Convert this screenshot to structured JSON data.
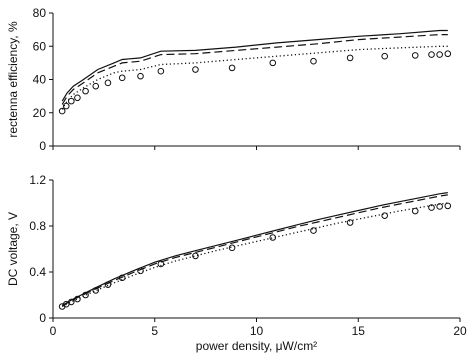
{
  "colors": {
    "axis": "#111111",
    "series": "#111111",
    "background": "#ffffff"
  },
  "chart_data": [
    {
      "type": "line",
      "title": "",
      "xlabel": "",
      "ylabel": "rectenna efficiency, %",
      "xlim": [
        0,
        20
      ],
      "ylim": [
        0,
        80
      ],
      "x_ticks": [
        0,
        5,
        10,
        15,
        20
      ],
      "x_tick_labels": [
        "",
        "",
        "",
        "",
        ""
      ],
      "y_ticks": [
        0,
        20,
        40,
        60,
        80
      ],
      "y_tick_labels": [
        "0",
        "20",
        "40",
        "60",
        "80"
      ],
      "grid": false,
      "legend": "none",
      "series": [
        {
          "style": "solid",
          "x": [
            0.45,
            0.7,
            1.0,
            1.5,
            2.2,
            3.0,
            3.4,
            4.3,
            5.3,
            7.0,
            9.0,
            11.0,
            13.0,
            15.0,
            17.0,
            19.0,
            19.4
          ],
          "y": [
            27,
            32,
            36,
            40,
            46,
            50,
            52,
            53,
            57,
            57.5,
            59.5,
            62,
            64,
            66,
            67.5,
            69.5,
            69.5
          ]
        },
        {
          "style": "dashed",
          "x": [
            0.45,
            0.7,
            1.0,
            1.5,
            2.2,
            3.0,
            3.4,
            4.3,
            5.3,
            7.0,
            9.0,
            11.0,
            13.0,
            15.0,
            17.0,
            19.0,
            19.4
          ],
          "y": [
            25,
            30,
            34,
            38,
            44,
            48,
            50,
            51,
            55,
            55.5,
            57.5,
            59.5,
            61.5,
            64,
            65.5,
            67,
            67
          ]
        },
        {
          "style": "dotted",
          "x": [
            0.45,
            0.7,
            1.0,
            1.5,
            2.2,
            3.0,
            3.4,
            4.3,
            5.3,
            7.0,
            9.0,
            11.0,
            13.0,
            15.0,
            17.0,
            19.0,
            19.4
          ],
          "y": [
            22,
            27,
            31,
            35,
            40,
            44,
            45,
            46,
            49,
            50,
            52,
            54,
            56,
            58,
            59,
            60,
            60
          ]
        },
        {
          "style": "circle-markers",
          "x": [
            0.45,
            0.65,
            0.9,
            1.2,
            1.6,
            2.1,
            2.7,
            3.4,
            4.3,
            5.3,
            7.0,
            8.8,
            10.8,
            12.8,
            14.6,
            16.3,
            17.8,
            18.6,
            19.0,
            19.4
          ],
          "y": [
            21,
            24,
            27,
            29,
            33,
            36,
            38,
            41,
            42,
            45,
            46,
            47,
            50,
            51,
            53,
            54,
            54.5,
            55,
            55,
            55.5
          ]
        }
      ]
    },
    {
      "type": "line",
      "title": "",
      "xlabel": "power density, μW/cm²",
      "ylabel": "DC voltage, V",
      "xlim": [
        0,
        20
      ],
      "ylim": [
        0,
        1.2
      ],
      "x_ticks": [
        0,
        5,
        10,
        15,
        20
      ],
      "x_tick_labels": [
        "0",
        "5",
        "10",
        "15",
        "20"
      ],
      "y_ticks": [
        0,
        0.4,
        0.8,
        1.2
      ],
      "y_tick_labels": [
        "0",
        "0.4",
        "0.8",
        "1.2"
      ],
      "grid": false,
      "legend": "none",
      "series": [
        {
          "style": "solid",
          "x": [
            0.45,
            1.0,
            2.0,
            3.0,
            4.0,
            5.0,
            6.0,
            7.0,
            8.0,
            9.0,
            10.0,
            11.0,
            12.0,
            13.0,
            14.0,
            15.0,
            16.0,
            17.0,
            18.0,
            19.0,
            19.4
          ],
          "y": [
            0.11,
            0.165,
            0.255,
            0.34,
            0.415,
            0.485,
            0.54,
            0.585,
            0.63,
            0.675,
            0.72,
            0.765,
            0.81,
            0.855,
            0.895,
            0.935,
            0.975,
            1.01,
            1.045,
            1.08,
            1.09
          ]
        },
        {
          "style": "dashed",
          "x": [
            0.45,
            1.0,
            2.0,
            3.0,
            4.0,
            5.0,
            6.0,
            7.0,
            8.0,
            9.0,
            10.0,
            11.0,
            12.0,
            13.0,
            14.0,
            15.0,
            16.0,
            17.0,
            18.0,
            19.0,
            19.4
          ],
          "y": [
            0.105,
            0.16,
            0.245,
            0.325,
            0.4,
            0.47,
            0.525,
            0.57,
            0.615,
            0.66,
            0.705,
            0.75,
            0.795,
            0.835,
            0.875,
            0.915,
            0.955,
            0.99,
            1.025,
            1.06,
            1.07
          ]
        },
        {
          "style": "dotted",
          "x": [
            0.45,
            1.0,
            2.0,
            3.0,
            4.0,
            5.0,
            6.0,
            7.0,
            8.0,
            9.0,
            10.0,
            11.0,
            12.0,
            13.0,
            14.0,
            15.0,
            16.0,
            17.0,
            18.0,
            19.0,
            19.4
          ],
          "y": [
            0.1,
            0.15,
            0.23,
            0.305,
            0.375,
            0.44,
            0.495,
            0.54,
            0.585,
            0.625,
            0.665,
            0.705,
            0.745,
            0.785,
            0.825,
            0.86,
            0.895,
            0.93,
            0.96,
            0.99,
            1.0
          ]
        },
        {
          "style": "circle-markers",
          "x": [
            0.45,
            0.65,
            0.9,
            1.2,
            1.6,
            2.1,
            2.7,
            3.4,
            4.3,
            5.3,
            7.0,
            8.8,
            10.8,
            12.8,
            14.6,
            16.3,
            17.8,
            18.6,
            19.0,
            19.4
          ],
          "y": [
            0.1,
            0.12,
            0.14,
            0.165,
            0.2,
            0.24,
            0.29,
            0.35,
            0.41,
            0.47,
            0.54,
            0.61,
            0.7,
            0.76,
            0.83,
            0.89,
            0.93,
            0.96,
            0.97,
            0.975
          ]
        }
      ]
    }
  ]
}
